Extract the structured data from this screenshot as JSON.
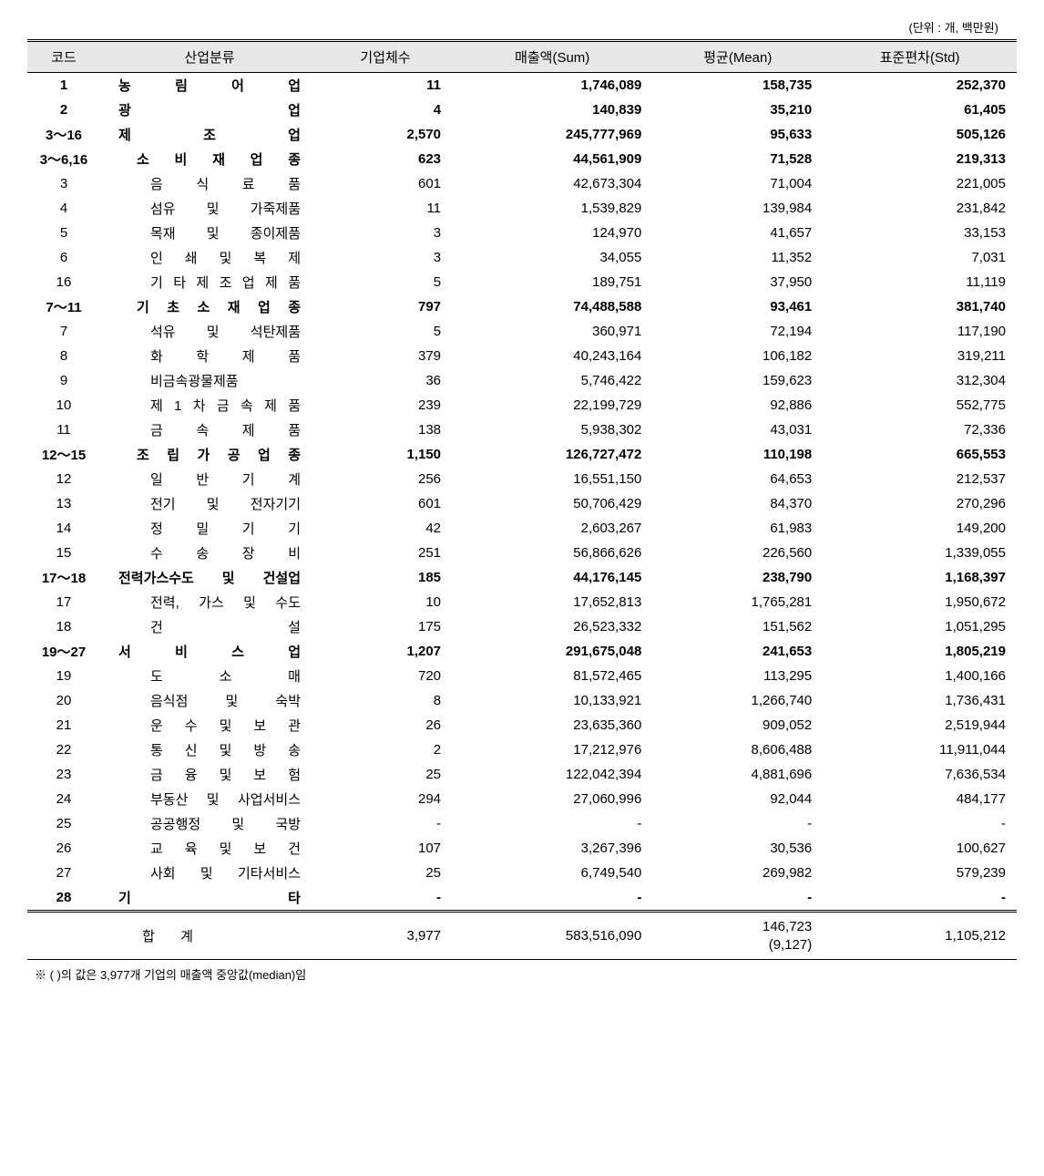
{
  "unit_label": "(단위 : 개, 백만원)",
  "headers": {
    "code": "코드",
    "industry": "산업분류",
    "count": "기업체수",
    "sum": "매출액(Sum)",
    "mean": "평균(Mean)",
    "std": "표준편차(Std)"
  },
  "rows": [
    {
      "code": "1",
      "industry": "농 림 어 업",
      "count": "11",
      "sum": "1,746,089",
      "mean": "158,735",
      "std": "252,370",
      "bold": true,
      "indent": 0
    },
    {
      "code": "2",
      "industry": "광 업",
      "count": "4",
      "sum": "140,839",
      "mean": "35,210",
      "std": "61,405",
      "bold": true,
      "indent": 0
    },
    {
      "code": "3～16",
      "industry": "제 조 업",
      "count": "2,570",
      "sum": "245,777,969",
      "mean": "95,633",
      "std": "505,126",
      "bold": true,
      "indent": 0
    },
    {
      "code": "3～6,16",
      "industry": "소 비 재 업 종",
      "count": "623",
      "sum": "44,561,909",
      "mean": "71,528",
      "std": "219,313",
      "bold": true,
      "indent": 1
    },
    {
      "code": "3",
      "industry": "음 식 료 품",
      "count": "601",
      "sum": "42,673,304",
      "mean": "71,004",
      "std": "221,005",
      "bold": false,
      "indent": 2
    },
    {
      "code": "4",
      "industry": "섬유 및 가죽제품",
      "count": "11",
      "sum": "1,539,829",
      "mean": "139,984",
      "std": "231,842",
      "bold": false,
      "indent": 2
    },
    {
      "code": "5",
      "industry": "목재 및 종이제품",
      "count": "3",
      "sum": "124,970",
      "mean": "41,657",
      "std": "33,153",
      "bold": false,
      "indent": 2
    },
    {
      "code": "6",
      "industry": "인 쇄 및 복 제",
      "count": "3",
      "sum": "34,055",
      "mean": "11,352",
      "std": "7,031",
      "bold": false,
      "indent": 2
    },
    {
      "code": "16",
      "industry": "기 타 제 조 업 제 품",
      "count": "5",
      "sum": "189,751",
      "mean": "37,950",
      "std": "11,119",
      "bold": false,
      "indent": 2
    },
    {
      "code": "7～11",
      "industry": "기 초 소 재 업 종",
      "count": "797",
      "sum": "74,488,588",
      "mean": "93,461",
      "std": "381,740",
      "bold": true,
      "indent": 1
    },
    {
      "code": "7",
      "industry": "석유 및 석탄제품",
      "count": "5",
      "sum": "360,971",
      "mean": "72,194",
      "std": "117,190",
      "bold": false,
      "indent": 2
    },
    {
      "code": "8",
      "industry": "화 학 제 품",
      "count": "379",
      "sum": "40,243,164",
      "mean": "106,182",
      "std": "319,211",
      "bold": false,
      "indent": 2
    },
    {
      "code": "9",
      "industry": "비금속광물제품",
      "count": "36",
      "sum": "5,746,422",
      "mean": "159,623",
      "std": "312,304",
      "bold": false,
      "indent": 2
    },
    {
      "code": "10",
      "industry": "제 1 차 금 속 제 품",
      "count": "239",
      "sum": "22,199,729",
      "mean": "92,886",
      "std": "552,775",
      "bold": false,
      "indent": 2
    },
    {
      "code": "11",
      "industry": "금 속 제 품",
      "count": "138",
      "sum": "5,938,302",
      "mean": "43,031",
      "std": "72,336",
      "bold": false,
      "indent": 2
    },
    {
      "code": "12～15",
      "industry": "조 립 가 공 업 종",
      "count": "1,150",
      "sum": "126,727,472",
      "mean": "110,198",
      "std": "665,553",
      "bold": true,
      "indent": 1
    },
    {
      "code": "12",
      "industry": "일 반 기 계",
      "count": "256",
      "sum": "16,551,150",
      "mean": "64,653",
      "std": "212,537",
      "bold": false,
      "indent": 2
    },
    {
      "code": "13",
      "industry": "전기 및 전자기기",
      "count": "601",
      "sum": "50,706,429",
      "mean": "84,370",
      "std": "270,296",
      "bold": false,
      "indent": 2
    },
    {
      "code": "14",
      "industry": "정 밀 기 기",
      "count": "42",
      "sum": "2,603,267",
      "mean": "61,983",
      "std": "149,200",
      "bold": false,
      "indent": 2
    },
    {
      "code": "15",
      "industry": "수 송 장 비",
      "count": "251",
      "sum": "56,866,626",
      "mean": "226,560",
      "std": "1,339,055",
      "bold": false,
      "indent": 2
    },
    {
      "code": "17～18",
      "industry": "전력가스수도 및 건설업",
      "count": "185",
      "sum": "44,176,145",
      "mean": "238,790",
      "std": "1,168,397",
      "bold": true,
      "indent": 0
    },
    {
      "code": "17",
      "industry": "전력, 가스 및 수도",
      "count": "10",
      "sum": "17,652,813",
      "mean": "1,765,281",
      "std": "1,950,672",
      "bold": false,
      "indent": 2
    },
    {
      "code": "18",
      "industry": "건 설",
      "count": "175",
      "sum": "26,523,332",
      "mean": "151,562",
      "std": "1,051,295",
      "bold": false,
      "indent": 2
    },
    {
      "code": "19～27",
      "industry": "서 비 스 업",
      "count": "1,207",
      "sum": "291,675,048",
      "mean": "241,653",
      "std": "1,805,219",
      "bold": true,
      "indent": 0
    },
    {
      "code": "19",
      "industry": "도 소 매",
      "count": "720",
      "sum": "81,572,465",
      "mean": "113,295",
      "std": "1,400,166",
      "bold": false,
      "indent": 2
    },
    {
      "code": "20",
      "industry": "음식점 및 숙박",
      "count": "8",
      "sum": "10,133,921",
      "mean": "1,266,740",
      "std": "1,736,431",
      "bold": false,
      "indent": 2
    },
    {
      "code": "21",
      "industry": "운 수 및 보 관",
      "count": "26",
      "sum": "23,635,360",
      "mean": "909,052",
      "std": "2,519,944",
      "bold": false,
      "indent": 2
    },
    {
      "code": "22",
      "industry": "통 신 및 방 송",
      "count": "2",
      "sum": "17,212,976",
      "mean": "8,606,488",
      "std": "11,911,044",
      "bold": false,
      "indent": 2
    },
    {
      "code": "23",
      "industry": "금 융 및 보 험",
      "count": "25",
      "sum": "122,042,394",
      "mean": "4,881,696",
      "std": "7,636,534",
      "bold": false,
      "indent": 2
    },
    {
      "code": "24",
      "industry": "부동산 및 사업서비스",
      "count": "294",
      "sum": "27,060,996",
      "mean": "92,044",
      "std": "484,177",
      "bold": false,
      "indent": 2
    },
    {
      "code": "25",
      "industry": "공공행정 및 국방",
      "count": "-",
      "sum": "-",
      "mean": "-",
      "std": "-",
      "bold": false,
      "indent": 2
    },
    {
      "code": "26",
      "industry": "교 육 및 보 건",
      "count": "107",
      "sum": "3,267,396",
      "mean": "30,536",
      "std": "100,627",
      "bold": false,
      "indent": 2
    },
    {
      "code": "27",
      "industry": "사회 및 기타서비스",
      "count": "25",
      "sum": "6,749,540",
      "mean": "269,982",
      "std": "579,239",
      "bold": false,
      "indent": 2
    },
    {
      "code": "28",
      "industry": "기 타",
      "count": "-",
      "sum": "-",
      "mean": "-",
      "std": "-",
      "bold": true,
      "indent": 0
    }
  ],
  "total": {
    "label": "합 계",
    "count": "3,977",
    "sum": "583,516,090",
    "mean": "146,723",
    "mean_sub": "(9,127)",
    "std": "1,105,212"
  },
  "footnote": "※ ( )의 값은 3,977개 기업의 매출액 중앙값(median)임",
  "styling": {
    "header_bg": "#e8e8e8",
    "border_color": "#000000",
    "text_color": "#000000",
    "font_family": "Malgun Gothic",
    "body_font_size": 15,
    "unit_font_size": 13,
    "footnote_font_size": 13
  }
}
